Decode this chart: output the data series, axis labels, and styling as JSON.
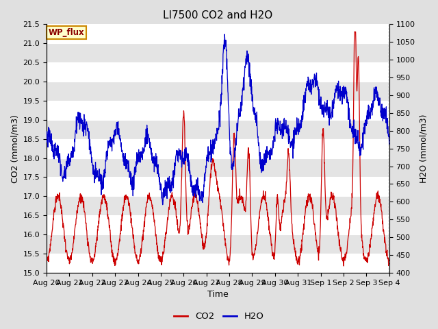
{
  "title": "LI7500 CO2 and H2O",
  "xlabel": "Time",
  "ylabel_left": "CO2 (mmol/m3)",
  "ylabel_right": "H2O (mmol/m3)",
  "ylim_left": [
    15.0,
    21.5
  ],
  "ylim_right": [
    400,
    1100
  ],
  "yticks_left": [
    15.0,
    15.5,
    16.0,
    16.5,
    17.0,
    17.5,
    18.0,
    18.5,
    19.0,
    19.5,
    20.0,
    20.5,
    21.0,
    21.5
  ],
  "yticks_right": [
    400,
    450,
    500,
    550,
    600,
    650,
    700,
    750,
    800,
    850,
    900,
    950,
    1000,
    1050,
    1100
  ],
  "x_tick_labels": [
    "Aug 20",
    "Aug 21",
    "Aug 22",
    "Aug 23",
    "Aug 24",
    "Aug 25",
    "Aug 26",
    "Aug 27",
    "Aug 28",
    "Aug 29",
    "Aug 30",
    "Aug 31",
    "Sep 1",
    "Sep 2",
    "Sep 3",
    "Sep 4"
  ],
  "co2_color": "#cc0000",
  "h2o_color": "#0000cc",
  "background_color": "#e0e0e0",
  "plot_bg_light": "#dcdcdc",
  "plot_bg_dark": "#c8c8c8",
  "grid_color": "#ffffff",
  "wp_flux_label": "WP_flux",
  "wp_flux_bg": "#ffffcc",
  "wp_flux_border": "#cc8800",
  "legend_co2": "CO2",
  "legend_h2o": "H2O",
  "title_fontsize": 11,
  "axis_fontsize": 9,
  "tick_fontsize": 8,
  "figsize": [
    6.4,
    4.8
  ],
  "dpi": 100
}
